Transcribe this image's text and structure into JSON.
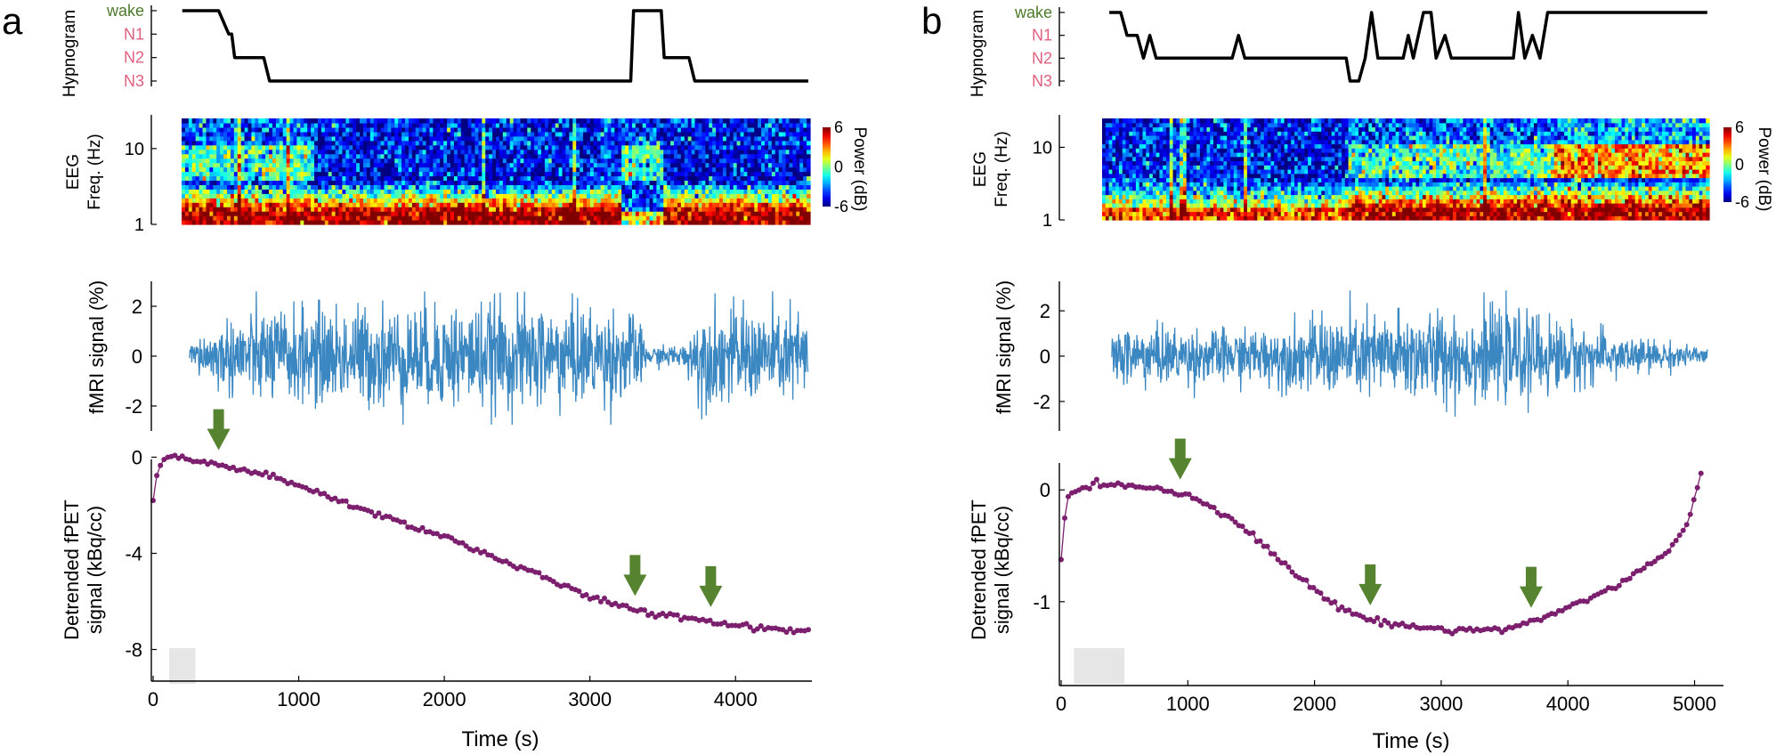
{
  "colors": {
    "wake": "#4d7a2a",
    "stage": "#e0607e",
    "fmri": "#3a87c2",
    "fpet": "#7b1f6e",
    "arrow": "#56832f",
    "hypno": "#000000",
    "shade": "#e6e6e6"
  },
  "shared": {
    "stage_labels": [
      "wake",
      "N1",
      "N2",
      "N3"
    ],
    "hypnogram_ylabel": "Hypnogram",
    "eeg_ylabel_1": "EEG",
    "eeg_ylabel_2": "Freq. (Hz)",
    "eeg_yticks": [
      "10",
      "1"
    ],
    "colorbar_label": "Power (dB)",
    "colorbar_ticks": [
      "6",
      "0",
      "-6"
    ],
    "fmri_ylabel": "fMRI signal (%)",
    "fpet_ylabel_1": "Detrended fPET",
    "fpet_ylabel_2": "signal (kBq/cc)",
    "time_xlabel": "Time (s)"
  },
  "chart_data": [
    {
      "panel_letter": "a",
      "type": "line",
      "xlim": [
        0,
        4500
      ],
      "xticks": [
        0,
        1000,
        2000,
        3000,
        4000
      ],
      "xlabel": "Time (s)",
      "hypnogram": {
        "type": "line",
        "ylabel": "Hypnogram",
        "stages": [
          "wake",
          "N1",
          "N2",
          "N3"
        ],
        "steps": [
          [
            200,
            0
          ],
          [
            450,
            0
          ],
          [
            520,
            1
          ],
          [
            540,
            1
          ],
          [
            560,
            2
          ],
          [
            760,
            2
          ],
          [
            800,
            3
          ],
          [
            3280,
            3
          ],
          [
            3300,
            0
          ],
          [
            3490,
            0
          ],
          [
            3510,
            2
          ],
          [
            3680,
            2
          ],
          [
            3720,
            3
          ],
          [
            4500,
            3
          ]
        ]
      },
      "eeg": {
        "type": "heatmap",
        "ylabel": "EEG Freq. (Hz)",
        "yscale": "log",
        "ylim": [
          1,
          25
        ],
        "yticks": [
          1,
          10
        ],
        "colorbar": {
          "label": "Power (dB)",
          "range": [
            -6,
            6
          ],
          "ticks": [
            6,
            0,
            -6
          ]
        },
        "xlim": [
          200,
          4500
        ],
        "bands": [
          {
            "time_range": [
              200,
              1100
            ],
            "low_freq_power": "high",
            "alpha_power": "medium"
          },
          {
            "time_range": [
              1100,
              3200
            ],
            "low_freq_power": "high",
            "alpha_power": "low"
          },
          {
            "time_range": [
              3200,
              3500
            ],
            "low_freq_power": "low",
            "alpha_power": "medium"
          },
          {
            "time_range": [
              3500,
              4500
            ],
            "low_freq_power": "high",
            "alpha_power": "low"
          }
        ]
      },
      "fmri": {
        "type": "line",
        "ylabel": "fMRI signal (%)",
        "ylim": [
          -3,
          3
        ],
        "yticks": [
          -2,
          0,
          2
        ],
        "xlim": [
          250,
          4500
        ],
        "amplitude_profile": [
          [
            250,
            0.5
          ],
          [
            600,
            1.6
          ],
          [
            1500,
            1.8
          ],
          [
            2600,
            1.9
          ],
          [
            3300,
            1.6
          ],
          [
            3400,
            0.35
          ],
          [
            3650,
            0.4
          ],
          [
            3750,
            1.7
          ],
          [
            4500,
            1.6
          ]
        ]
      },
      "fpet": {
        "type": "scatter",
        "ylabel": "Detrended fPET signal (kBq/cc)",
        "ylim": [
          -9.5,
          0.5
        ],
        "yticks": [
          -8,
          -4,
          0
        ],
        "points": [
          [
            0,
            -1.9
          ],
          [
            30,
            -0.6
          ],
          [
            60,
            -0.2
          ],
          [
            120,
            0.0
          ],
          [
            200,
            0.0
          ],
          [
            300,
            -0.2
          ],
          [
            450,
            -0.3
          ],
          [
            600,
            -0.5
          ],
          [
            800,
            -0.8
          ],
          [
            1000,
            -1.2
          ],
          [
            1200,
            -1.6
          ],
          [
            1400,
            -2.1
          ],
          [
            1600,
            -2.5
          ],
          [
            1800,
            -2.9
          ],
          [
            2000,
            -3.3
          ],
          [
            2200,
            -3.8
          ],
          [
            2400,
            -4.3
          ],
          [
            2600,
            -4.8
          ],
          [
            2800,
            -5.3
          ],
          [
            3000,
            -5.8
          ],
          [
            3200,
            -6.2
          ],
          [
            3400,
            -6.5
          ],
          [
            3600,
            -6.6
          ],
          [
            3800,
            -6.8
          ],
          [
            4000,
            -7.0
          ],
          [
            4200,
            -7.1
          ],
          [
            4400,
            -7.2
          ],
          [
            4500,
            -7.2
          ]
        ],
        "arrows": [
          450,
          3310,
          3830
        ],
        "shaded_interval": [
          110,
          290
        ]
      }
    },
    {
      "panel_letter": "b",
      "type": "line",
      "xlim": [
        0,
        5200
      ],
      "xticks": [
        0,
        1000,
        2000,
        3000,
        4000,
        5000
      ],
      "xlabel": "Time (s)",
      "hypnogram": {
        "type": "line",
        "ylabel": "Hypnogram",
        "stages": [
          "wake",
          "N1",
          "N2",
          "N3"
        ],
        "steps": [
          [
            380,
            0
          ],
          [
            470,
            0
          ],
          [
            520,
            1
          ],
          [
            600,
            1
          ],
          [
            650,
            2
          ],
          [
            700,
            1
          ],
          [
            750,
            2
          ],
          [
            1350,
            2
          ],
          [
            1400,
            1
          ],
          [
            1450,
            2
          ],
          [
            2250,
            2
          ],
          [
            2280,
            3
          ],
          [
            2350,
            3
          ],
          [
            2400,
            2
          ],
          [
            2450,
            0
          ],
          [
            2500,
            2
          ],
          [
            2700,
            2
          ],
          [
            2740,
            1
          ],
          [
            2780,
            2
          ],
          [
            2860,
            0
          ],
          [
            2920,
            0
          ],
          [
            2960,
            2
          ],
          [
            3030,
            1
          ],
          [
            3080,
            2
          ],
          [
            3570,
            2
          ],
          [
            3610,
            0
          ],
          [
            3660,
            2
          ],
          [
            3720,
            1
          ],
          [
            3780,
            2
          ],
          [
            3840,
            0
          ],
          [
            5100,
            0
          ]
        ]
      },
      "eeg": {
        "type": "heatmap",
        "ylabel": "EEG Freq. (Hz)",
        "yscale": "log",
        "ylim": [
          1,
          25
        ],
        "yticks": [
          1,
          10
        ],
        "colorbar": {
          "label": "Power (dB)",
          "range": [
            -6,
            6
          ],
          "ticks": [
            6,
            0,
            -6
          ]
        },
        "xlim": [
          380,
          5100
        ],
        "bands": [
          {
            "time_range": [
              380,
              2300
            ],
            "low_freq_power": "medium",
            "alpha_power": "low"
          },
          {
            "time_range": [
              2300,
              3900
            ],
            "low_freq_power": "high",
            "alpha_power": "medium"
          },
          {
            "time_range": [
              3900,
              5100
            ],
            "low_freq_power": "high",
            "alpha_power": "high"
          }
        ]
      },
      "fmri": {
        "type": "line",
        "ylabel": "fMRI signal (%)",
        "ylim": [
          -3.3,
          3.3
        ],
        "yticks": [
          -2,
          0,
          2
        ],
        "xlim": [
          400,
          5100
        ],
        "amplitude_profile": [
          [
            400,
            1.2
          ],
          [
            1500,
            1.0
          ],
          [
            2200,
            1.6
          ],
          [
            3000,
            1.8
          ],
          [
            3800,
            1.6
          ],
          [
            4300,
            0.9
          ],
          [
            5100,
            0.3
          ]
        ]
      },
      "fpet": {
        "type": "scatter",
        "ylabel": "Detrended fPET signal (kBq/cc)",
        "ylim": [
          -1.75,
          0.4
        ],
        "yticks": [
          -1,
          0
        ],
        "points": [
          [
            0,
            -0.6
          ],
          [
            40,
            -0.1
          ],
          [
            100,
            0.0
          ],
          [
            200,
            0.03
          ],
          [
            400,
            0.05
          ],
          [
            600,
            0.04
          ],
          [
            800,
            0.0
          ],
          [
            1000,
            -0.05
          ],
          [
            1200,
            -0.15
          ],
          [
            1400,
            -0.3
          ],
          [
            1600,
            -0.5
          ],
          [
            1800,
            -0.7
          ],
          [
            2000,
            -0.9
          ],
          [
            2200,
            -1.05
          ],
          [
            2400,
            -1.15
          ],
          [
            2600,
            -1.2
          ],
          [
            2800,
            -1.22
          ],
          [
            3000,
            -1.25
          ],
          [
            3200,
            -1.25
          ],
          [
            3400,
            -1.25
          ],
          [
            3600,
            -1.22
          ],
          [
            3800,
            -1.15
          ],
          [
            4000,
            -1.05
          ],
          [
            4200,
            -0.95
          ],
          [
            4400,
            -0.85
          ],
          [
            4600,
            -0.7
          ],
          [
            4800,
            -0.55
          ],
          [
            4950,
            -0.3
          ],
          [
            5050,
            0.15
          ]
        ],
        "arrows": [
          940,
          2440,
          3710
        ],
        "shaded_interval": [
          100,
          500
        ]
      }
    }
  ]
}
